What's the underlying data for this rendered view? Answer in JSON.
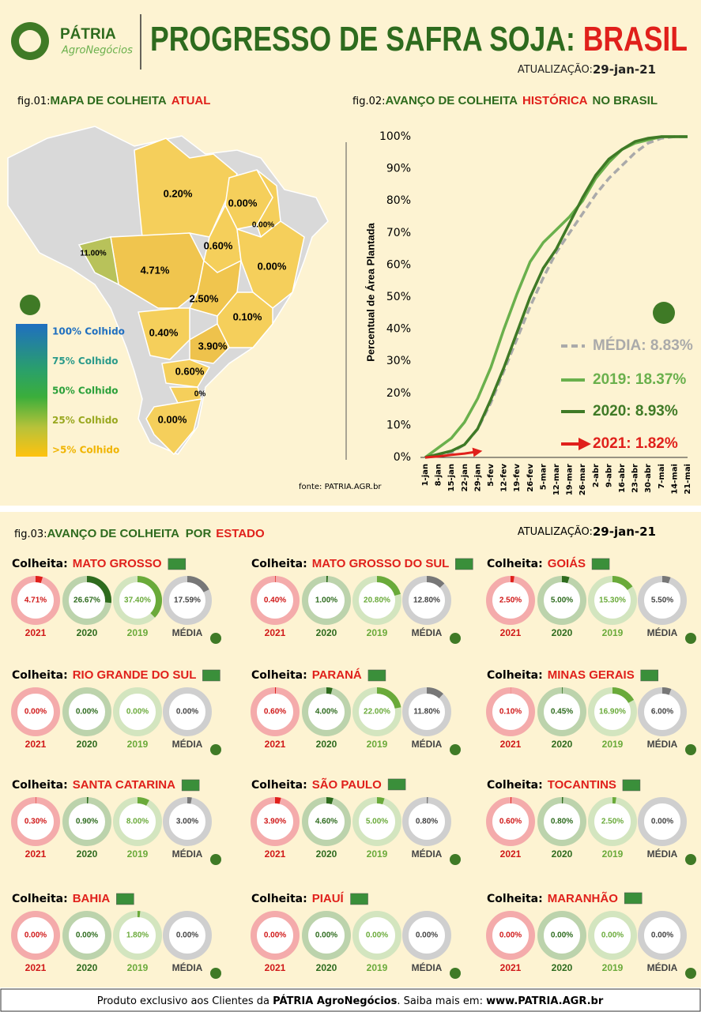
{
  "header": {
    "brand": "PÁTRIA",
    "brand_sub": "AgroNegócios",
    "title": "PROGRESSO DE SAFRA SOJA: ",
    "title_highlight": "BRASIL",
    "update_label": "ATUALIZAÇÃO:",
    "update_date": "29-jan-21"
  },
  "fig01": {
    "fig": "fig.01:",
    "title": "MAPA DE COLHEITA",
    "title_highlight": "ATUAL",
    "legend": [
      "100% Colhido",
      "75% Colhido",
      "50% Colhido",
      "25% Colhido",
      ">5% Colhido"
    ],
    "labels": [
      "0.20%",
      "0.00%",
      "0.00%",
      "0.60%",
      "0.00%",
      "11.00%",
      "4.71%",
      "2.50%",
      "0.10%",
      "0.40%",
      "3.90%",
      "0.60%",
      "0%",
      "0.00%"
    ],
    "source": "fonte: PATRIA.AGR.br"
  },
  "chart_data": {
    "type": "line",
    "fig": "fig.02:",
    "title": "AVANÇO DE COLHEITA",
    "title_highlight": "HISTÓRICA",
    "title_end": "NO BRASIL",
    "ylabel": "Percentual de Área Plantada",
    "categories": [
      "1-jan",
      "8-jan",
      "15-jan",
      "22-jan",
      "29-jan",
      "5-fev",
      "12-fev",
      "19-fev",
      "26-fev",
      "5-mar",
      "12-mar",
      "19-mar",
      "26-mar",
      "2-abr",
      "9-abr",
      "16-abr",
      "23-abr",
      "30-abr",
      "7-mai",
      "14-mai",
      "21-mai"
    ],
    "ylim": [
      0,
      100
    ],
    "yticks": [
      {
        "value": 0,
        "label": "0%"
      },
      {
        "value": 10,
        "label": "10%"
      },
      {
        "value": 20,
        "label": "20%"
      },
      {
        "value": 30,
        "label": "30%"
      },
      {
        "value": 40,
        "label": "40%"
      },
      {
        "value": 50,
        "label": "50%"
      },
      {
        "value": 60,
        "label": "60%"
      },
      {
        "value": 70,
        "label": "70%"
      },
      {
        "value": 80,
        "label": "80%"
      },
      {
        "value": 90,
        "label": "90%"
      },
      {
        "value": 100,
        "label": "100%"
      }
    ],
    "grid": false,
    "series": [
      {
        "name": "MÉDIA",
        "legend_label": ": 8.83%",
        "color": "#aaaaaa",
        "dashed": true,
        "values": [
          0,
          0.5,
          1.5,
          4,
          8.83,
          17,
          27,
          37,
          47,
          56,
          64,
          70,
          76,
          82,
          87,
          91,
          95,
          98,
          99.5,
          100,
          100
        ]
      },
      {
        "name": "2019",
        "legend_label": ": 18.37%",
        "color": "#6ab04c",
        "dashed": false,
        "values": [
          0,
          3,
          6,
          11,
          18.37,
          28,
          40,
          51,
          61,
          67,
          71,
          75,
          80,
          87,
          92,
          96,
          98,
          99,
          100,
          100,
          100
        ]
      },
      {
        "name": "2020",
        "legend_label": ": 8.93%",
        "color": "#3f7a26",
        "dashed": false,
        "values": [
          0,
          1,
          2,
          4,
          8.93,
          18,
          28,
          39,
          50,
          59,
          65,
          73,
          81,
          88,
          93,
          96,
          98.5,
          99.5,
          100,
          100,
          100
        ]
      },
      {
        "name": "2021",
        "legend_label": ": 1.82%",
        "color": "#e0201b",
        "dashed": false,
        "values": [
          0,
          0.3,
          0.8,
          1.2,
          1.82,
          null,
          null,
          null,
          null,
          null,
          null,
          null,
          null,
          null,
          null,
          null,
          null,
          null,
          null,
          null,
          null
        ]
      }
    ]
  },
  "fig03": {
    "fig": "fig.03:",
    "title": "AVANÇO DE COLHEITA  POR",
    "title_highlight": "ESTADO",
    "update_label": "ATUALIZAÇÃO:",
    "update_date": "29-jan-21",
    "prefix": "Colheita:",
    "years": [
      "2021",
      "2020",
      "2019",
      "MÉDIA"
    ],
    "states": [
      {
        "name": "MATO GROSSO",
        "values": [
          4.71,
          26.67,
          37.4,
          17.59
        ],
        "value_labels": [
          "4.71%",
          "26.67%",
          "37.40%",
          "17.59%"
        ]
      },
      {
        "name": "MATO GROSSO DO SUL",
        "values": [
          0.4,
          1,
          20.8,
          12.8
        ],
        "value_labels": [
          "0.40%",
          "1.00%",
          "20.80%",
          "12.80%"
        ]
      },
      {
        "name": "GOIÁS",
        "values": [
          2.5,
          5,
          15.3,
          5.5
        ],
        "value_labels": [
          "2.50%",
          "5.00%",
          "15.30%",
          "5.50%"
        ]
      },
      {
        "name": "RIO GRANDE DO SUL",
        "values": [
          0,
          0,
          0,
          0
        ],
        "value_labels": [
          "0.00%",
          "0.00%",
          "0.00%",
          "0.00%"
        ]
      },
      {
        "name": "PARANÁ",
        "values": [
          0.6,
          4,
          22,
          11.8
        ],
        "value_labels": [
          "0.60%",
          "4.00%",
          "22.00%",
          "11.80%"
        ]
      },
      {
        "name": "MINAS GERAIS",
        "values": [
          0.1,
          0.45,
          16.9,
          6
        ],
        "value_labels": [
          "0.10%",
          "0.45%",
          "16.90%",
          "6.00%"
        ]
      },
      {
        "name": "SANTA CATARINA",
        "values": [
          0.3,
          0.9,
          8,
          3
        ],
        "value_labels": [
          "0.30%",
          "0.90%",
          "8.00%",
          "3.00%"
        ]
      },
      {
        "name": "SÃO PAULO",
        "values": [
          3.9,
          4.6,
          5,
          0.8
        ],
        "value_labels": [
          "3.90%",
          "4.60%",
          "5.00%",
          "0.80%"
        ]
      },
      {
        "name": "TOCANTINS",
        "values": [
          0.6,
          0.8,
          2.5,
          0
        ],
        "value_labels": [
          "0.60%",
          "0.80%",
          "2.50%",
          "0.00%"
        ]
      },
      {
        "name": "BAHIA",
        "values": [
          0,
          0,
          1.8,
          0
        ],
        "value_labels": [
          "0.00%",
          "0.00%",
          "1.80%",
          "0.00%"
        ]
      },
      {
        "name": "PIAUÍ",
        "values": [
          0,
          0,
          0,
          0
        ],
        "value_labels": [
          "0.00%",
          "0.00%",
          "0.00%",
          "0.00%"
        ]
      },
      {
        "name": "MARANHÃO",
        "values": [
          0,
          0,
          0,
          0
        ],
        "value_labels": [
          "0.00%",
          "0.00%",
          "0.00%",
          "0.00%"
        ]
      }
    ]
  },
  "footer": {
    "text": "Produto exclusivo aos Clientes da ",
    "brand": "PÁTRIA AgroNegócios",
    "mid": ". Saiba mais em: ",
    "url": "www.PATRIA.AGR.br"
  }
}
